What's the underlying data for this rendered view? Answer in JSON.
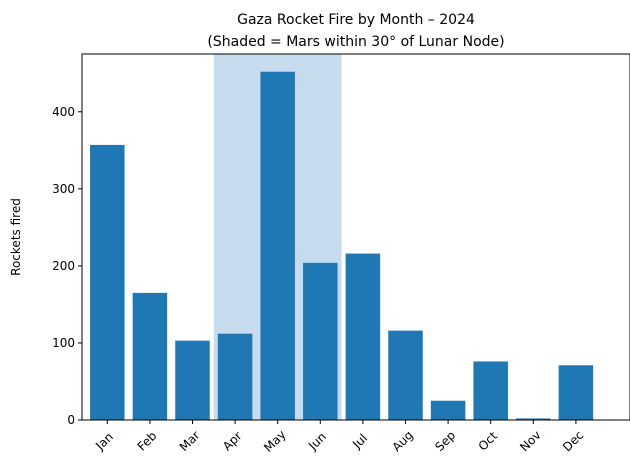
{
  "chart_data": {
    "type": "bar",
    "title": "Gaza Rocket Fire by Month – 2024",
    "subtitle": "(Shaded = Mars within 30° of Lunar Node)",
    "xlabel": "",
    "ylabel": "Rockets fired",
    "categories": [
      "Jan",
      "Feb",
      "Mar",
      "Apr",
      "May",
      "Jun",
      "Jul",
      "Aug",
      "Sep",
      "Oct",
      "Nov",
      "Dec"
    ],
    "values": [
      357,
      165,
      103,
      112,
      452,
      204,
      216,
      116,
      25,
      76,
      2,
      71
    ],
    "ylim": [
      0,
      475
    ],
    "yticks": [
      0,
      100,
      200,
      300,
      400
    ],
    "shaded_range": [
      "Apr",
      "Jun"
    ],
    "bar_color": "#1f77b4",
    "shade_color": "#c6dbed",
    "grid": false
  }
}
